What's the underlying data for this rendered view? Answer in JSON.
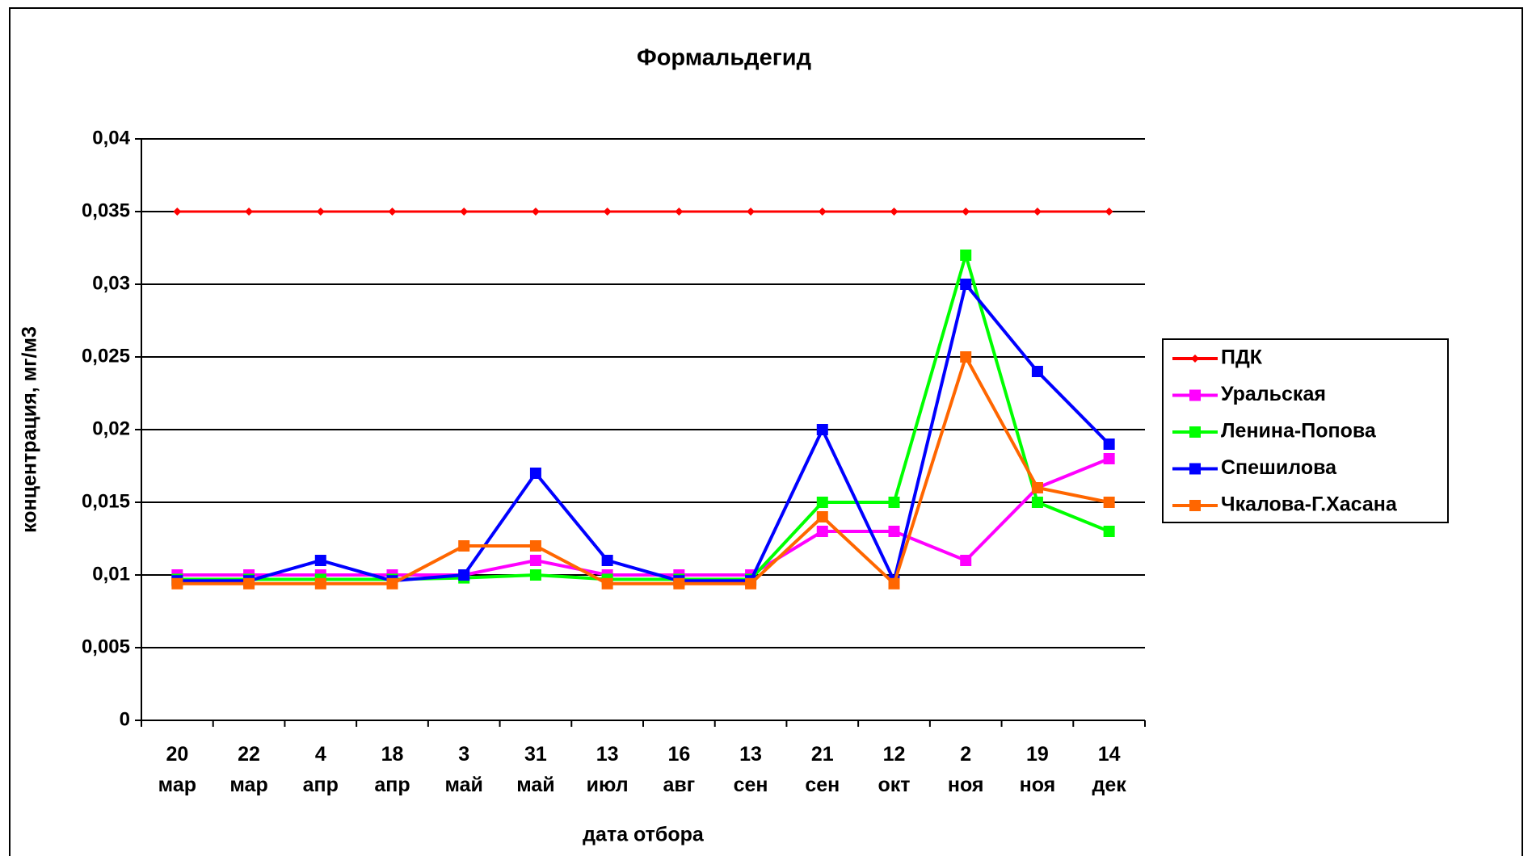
{
  "chart_data": {
    "type": "line",
    "title": "Формальдегид",
    "x_label": "дата отбора",
    "y_label": "концентрация, мг/м3",
    "categories": [
      "20 мар",
      "22 мар",
      "4 апр",
      "18 апр",
      "3 май",
      "31 май",
      "13 июл",
      "16 авг",
      "13 сен",
      "21 сен",
      "12 окт",
      "2 ноя",
      "19 ноя",
      "14 дек"
    ],
    "series": [
      {
        "name": "ПДК",
        "color": "#ff0000",
        "marker": "diamond",
        "values": [
          0.035,
          0.035,
          0.035,
          0.035,
          0.035,
          0.035,
          0.035,
          0.035,
          0.035,
          0.035,
          0.035,
          0.035,
          0.035,
          0.035
        ]
      },
      {
        "name": "Уральская",
        "color": "#ff00ff",
        "marker": "square",
        "values": [
          0.01,
          0.01,
          0.01,
          0.01,
          0.01,
          0.011,
          0.01,
          0.01,
          0.01,
          0.013,
          0.013,
          0.011,
          0.016,
          0.018
        ]
      },
      {
        "name": "Ленина-Попова",
        "color": "#00ff00",
        "marker": "square",
        "values": [
          0.0097,
          0.0097,
          0.0097,
          0.0097,
          0.0098,
          0.01,
          0.0097,
          0.0097,
          0.0097,
          0.015,
          0.015,
          0.032,
          0.015,
          0.013
        ]
      },
      {
        "name": "Спешилова",
        "color": "#0000ff",
        "marker": "square",
        "values": [
          0.0096,
          0.0096,
          0.011,
          0.0096,
          0.01,
          0.017,
          0.011,
          0.0096,
          0.0096,
          0.02,
          0.0096,
          0.03,
          0.024,
          0.019
        ]
      },
      {
        "name": "Чкалова-Г.Хасана",
        "color": "#ff6600",
        "marker": "square",
        "values": [
          0.0094,
          0.0094,
          0.0094,
          0.0094,
          0.012,
          0.012,
          0.0094,
          0.0094,
          0.0094,
          0.014,
          0.0094,
          0.025,
          0.016,
          0.015
        ]
      }
    ],
    "ylim": [
      0,
      0.04
    ],
    "yticks": [
      0,
      {
        "value": 0.005,
        "label": "0,005"
      },
      {
        "value": 0.01,
        "label": "0,01"
      },
      {
        "value": 0.015,
        "label": "0,015"
      },
      {
        "value": 0.02,
        "label": "0,02"
      },
      {
        "value": 0.025,
        "label": "0,025"
      },
      {
        "value": 0.03,
        "label": "0,03"
      },
      {
        "value": 0.035,
        "label": "0,035"
      },
      {
        "value": 0.04,
        "label": "0,04"
      }
    ],
    "grid": true,
    "legend": "right"
  }
}
